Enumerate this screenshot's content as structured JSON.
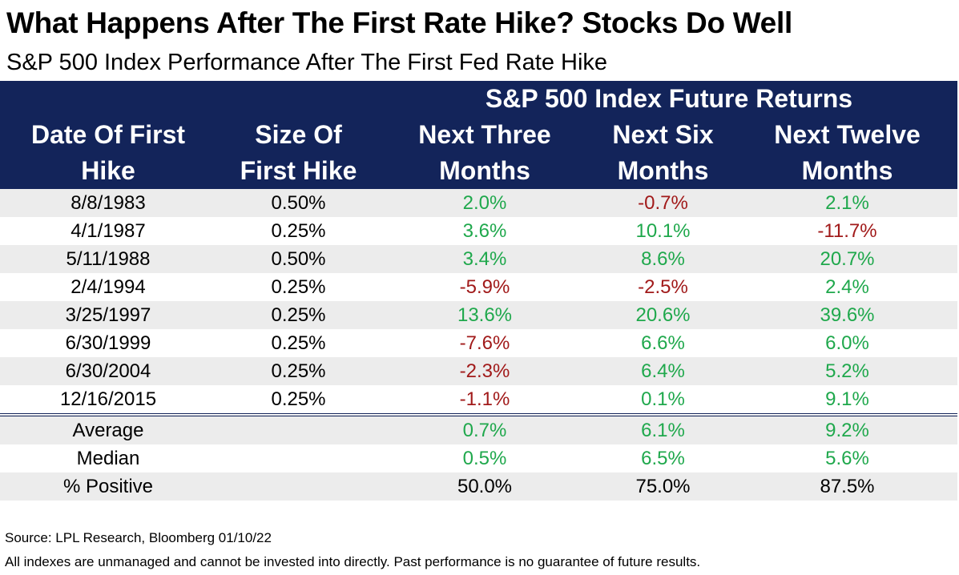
{
  "header": {
    "title": "What Happens After The First Rate Hike? Stocks Do Well",
    "subtitle": "S&P 500 Index Performance After The First Fed Rate Hike"
  },
  "table": {
    "group_header": "S&P 500 Index Future Returns",
    "columns": [
      [
        "Date Of First",
        "Hike"
      ],
      [
        "Size Of",
        "First Hike"
      ],
      [
        "Next Three",
        "Months"
      ],
      [
        "Next Six",
        "Months"
      ],
      [
        "Next Twelve",
        "Months"
      ]
    ],
    "rows": [
      [
        "8/8/1983",
        "0.50%",
        "2.0%",
        "-0.7%",
        "2.1%"
      ],
      [
        "4/1/1987",
        "0.25%",
        "3.6%",
        "10.1%",
        "-11.7%"
      ],
      [
        "5/11/1988",
        "0.50%",
        "3.4%",
        "8.6%",
        "20.7%"
      ],
      [
        "2/4/1994",
        "0.25%",
        "-5.9%",
        "-2.5%",
        "2.4%"
      ],
      [
        "3/25/1997",
        "0.25%",
        "13.6%",
        "20.6%",
        "39.6%"
      ],
      [
        "6/30/1999",
        "0.25%",
        "-7.6%",
        "6.6%",
        "6.0%"
      ],
      [
        "6/30/2004",
        "0.25%",
        "-2.3%",
        "6.4%",
        "5.2%"
      ],
      [
        "12/16/2015",
        "0.25%",
        "-1.1%",
        "0.1%",
        "9.1%"
      ]
    ],
    "summary_rows": [
      [
        "Average",
        null,
        "0.7%",
        "6.1%",
        "9.2%"
      ],
      [
        "Median",
        null,
        "0.5%",
        "6.5%",
        "5.6%"
      ],
      [
        "% Positive",
        null,
        "50.0%",
        "75.0%",
        "87.5%"
      ]
    ],
    "positive_color": "#1fa84c",
    "negative_color": "#a11a1a"
  },
  "footer": {
    "source": "Source: LPL Research, Bloomberg 01/10/22",
    "disclaimer": "All indexes are unmanaged and cannot be invested into directly. Past performance is no guarantee of future results."
  }
}
